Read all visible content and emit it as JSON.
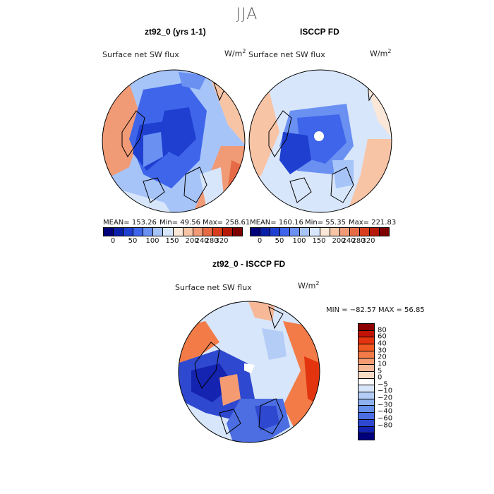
{
  "season": "JJA",
  "panel1": {
    "title": "zt92_0 (yrs 1-1)",
    "variable": "Surface net SW flux",
    "unit": "W/m",
    "unit_exp": "2",
    "mean": "MEAN= 153.26",
    "min": "Min=   49.56",
    "max": "Max= 258.61"
  },
  "panel2": {
    "title": "ISCCP FD",
    "variable": "Surface net SW flux",
    "unit": "W/m",
    "unit_exp": "2",
    "mean": "MEAN= 160.16",
    "min": "Min=   55.35",
    "max": "Max= 221.83"
  },
  "panel3": {
    "title": "zt92_0 - ISCCP FD",
    "variable": "Surface net SW flux",
    "unit": "W/m",
    "unit_exp": "2",
    "minmax": "MIN = −82.57 MAX =  56.85"
  },
  "colorbar_main": {
    "colors": [
      "#00007a",
      "#0a1fa8",
      "#1f3fd0",
      "#3f65ea",
      "#6a90f2",
      "#a6c4f8",
      "#d8e6fb",
      "#fbe7d8",
      "#f8c4a6",
      "#f19a76",
      "#e66a45",
      "#d63e1e",
      "#b51a08",
      "#7d0000"
    ],
    "ticks": [
      "0",
      "50",
      "100",
      "150",
      "200",
      "240",
      "280",
      "320"
    ]
  },
  "colorbar_diff": {
    "colors": [
      "#8b0000",
      "#c11406",
      "#e2350f",
      "#f05a22",
      "#f27b48",
      "#f59b72",
      "#f7b898",
      "#fadbc6",
      "#ffffff",
      "#d8e6fb",
      "#b3cdf6",
      "#8eb1f0",
      "#6690ea",
      "#4c6ee2",
      "#2f48d0",
      "#1423b0",
      "#00007f"
    ],
    "ticks": [
      "80",
      "60",
      "40",
      "30",
      "20",
      "10",
      "5",
      "0",
      "−5",
      "−10",
      "−20",
      "−30",
      "−40",
      "−60",
      "−80"
    ]
  }
}
